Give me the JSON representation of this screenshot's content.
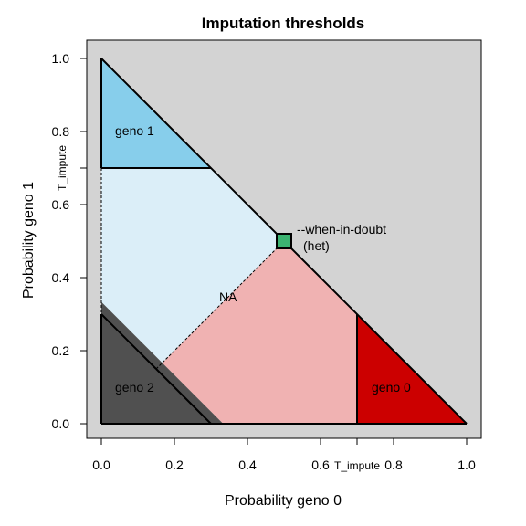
{
  "chart_data": {
    "type": "area",
    "title": "Imputation thresholds",
    "xlabel": "Probability geno 0",
    "ylabel": "Probability geno 1",
    "xlim": [
      0.0,
      1.0
    ],
    "ylim": [
      0.0,
      1.0
    ],
    "x_ticks": [
      "0.0",
      "0.2",
      "0.4",
      "0.6",
      "0.8",
      "1.0"
    ],
    "y_ticks": [
      "0.0",
      "0.2",
      "0.4",
      "0.6",
      "0.8",
      "1.0"
    ],
    "t_impute": 0.7,
    "t_impute_label": "T_impute",
    "background_color": "#d3d3d3",
    "regions": [
      {
        "name": "geno 1",
        "label": "geno 1",
        "color": "#87ceeb",
        "label_at": [
          0.1,
          0.8
        ],
        "polygon": [
          [
            0,
            1
          ],
          [
            0,
            0.7
          ],
          [
            0.3,
            0.7
          ]
        ]
      },
      {
        "name": "NA-light",
        "label": "",
        "color": "#dbeef8",
        "polygon": [
          [
            0,
            0.7
          ],
          [
            0.3,
            0.7
          ],
          [
            0.5,
            0.5
          ],
          [
            0.1667,
            0.1667
          ],
          [
            0,
            0.3333
          ]
        ]
      },
      {
        "name": "NA-pink",
        "label": "NA",
        "color": "#f0b2b2",
        "label_at": [
          0.35,
          0.35
        ],
        "polygon": [
          [
            0.1667,
            0.1667
          ],
          [
            0.5,
            0.5
          ],
          [
            0.7,
            0.3
          ],
          [
            0.7,
            0
          ],
          [
            0.3333,
            0
          ]
        ]
      },
      {
        "name": "geno 2",
        "label": "geno 2",
        "color": "#505050",
        "label_at": [
          0.1,
          0.1
        ],
        "polygon": [
          [
            0,
            0.3333
          ],
          [
            0,
            0
          ],
          [
            0.3333,
            0
          ],
          [
            0.1667,
            0.1667
          ]
        ]
      },
      {
        "name": "geno 0",
        "label": "geno 0",
        "color": "#cc0000",
        "label_at": [
          0.8,
          0.1
        ],
        "polygon": [
          [
            0.7,
            0.3
          ],
          [
            1,
            0
          ],
          [
            0.7,
            0
          ]
        ]
      }
    ],
    "doubt_point": {
      "x": 0.5,
      "y": 0.5,
      "color": "#3cb371",
      "label": "--when-in-doubt",
      "sublabel": "(het)"
    }
  }
}
